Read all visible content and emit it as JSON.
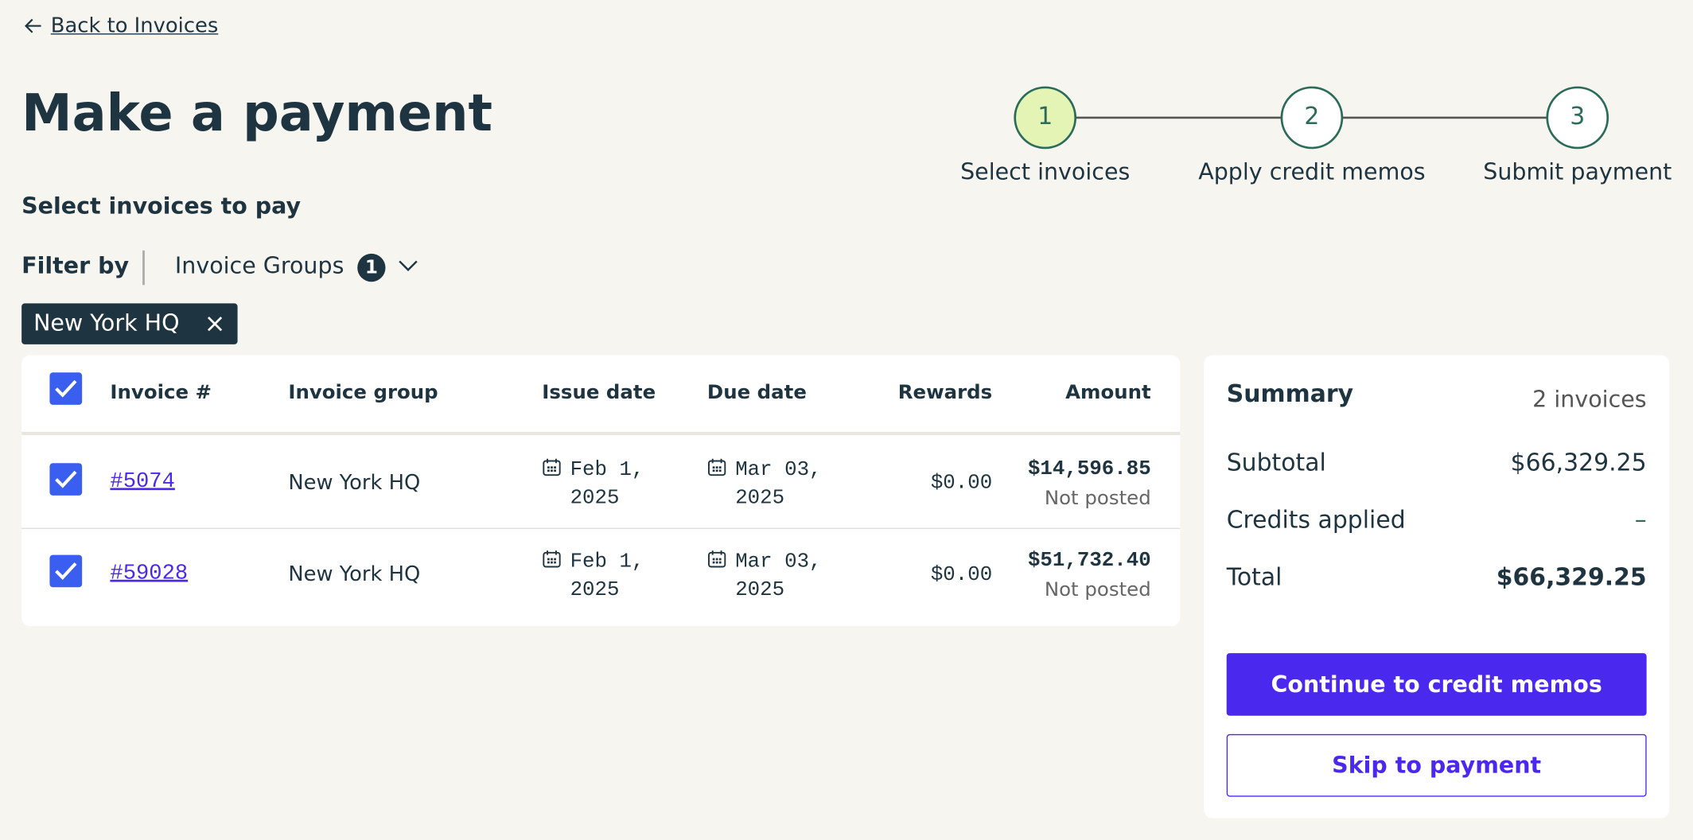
{
  "nav": {
    "back": "Back to Invoices"
  },
  "header": {
    "title": "Make a payment"
  },
  "steps": [
    {
      "number": "1",
      "label": "Select invoices"
    },
    {
      "number": "2",
      "label": "Apply credit memos"
    },
    {
      "number": "3",
      "label": "Submit payment"
    }
  ],
  "section_title": "Select invoices to pay",
  "filter": {
    "label": "Filter by",
    "dropdown": "Invoice Groups",
    "count": "1",
    "chips": [
      "New York HQ"
    ]
  },
  "table": {
    "columns": [
      "Invoice #",
      "Invoice group",
      "Issue date",
      "Due date",
      "Rewards",
      "Amount"
    ],
    "rows": [
      {
        "invoice": "#5074",
        "group": "New York HQ",
        "issue_date": "Feb 1, 2025",
        "due_date": "Mar 03, 2025",
        "rewards": "$0.00",
        "amount": "$14,596.85",
        "status": "Not posted"
      },
      {
        "invoice": "#59028",
        "group": "New York HQ",
        "issue_date": "Feb 1, 2025",
        "due_date": "Mar 03, 2025",
        "rewards": "$0.00",
        "amount": "$51,732.40",
        "status": "Not posted"
      }
    ]
  },
  "summary": {
    "title": "Summary",
    "count": "2 invoices",
    "rows": [
      {
        "label": "Subtotal",
        "value": "$66,329.25"
      },
      {
        "label": "Credits applied",
        "value": "–"
      },
      {
        "label": "Total",
        "value": "$66,329.25"
      }
    ]
  },
  "buttons": {
    "primary": "Continue to credit memos",
    "secondary": "Skip to payment"
  }
}
